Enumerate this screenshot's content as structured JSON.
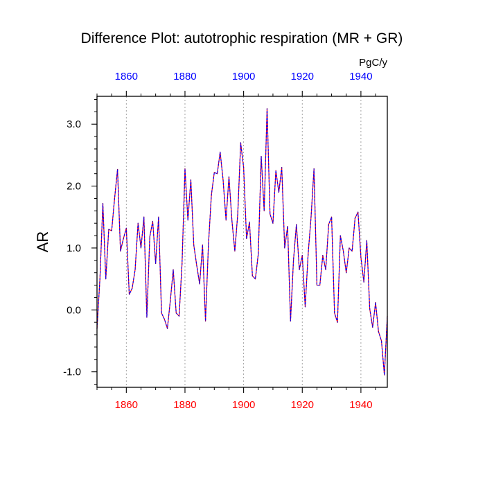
{
  "chart_data": {
    "type": "line",
    "title": "Difference Plot: autotrophic respiration (MR + GR)",
    "ylabel": "AR",
    "units": "PgC/y",
    "xlim": [
      1850,
      1949
    ],
    "ylim": [
      -1.25,
      3.45
    ],
    "x_ticks": [
      "1860",
      "1880",
      "1900",
      "1920",
      "1940"
    ],
    "y_ticks": [
      "3.0",
      "2.0",
      "1.0",
      "0.0",
      "-1.0"
    ],
    "grid": "vertical dotted",
    "colors": {
      "bottom_axis_labels": "#ff0000",
      "top_axis_labels": "#0000ff",
      "series_dash_a": "#0000ff",
      "series_dash_b": "#ff0000"
    },
    "series": [
      {
        "name": "AR",
        "x": [
          1850,
          1851,
          1852,
          1853,
          1854,
          1855,
          1856,
          1857,
          1858,
          1859,
          1860,
          1861,
          1862,
          1863,
          1864,
          1865,
          1866,
          1867,
          1868,
          1869,
          1870,
          1871,
          1872,
          1873,
          1874,
          1875,
          1876,
          1877,
          1878,
          1879,
          1880,
          1881,
          1882,
          1883,
          1884,
          1885,
          1886,
          1887,
          1888,
          1889,
          1890,
          1891,
          1892,
          1893,
          1894,
          1895,
          1896,
          1897,
          1898,
          1899,
          1900,
          1901,
          1902,
          1903,
          1904,
          1905,
          1906,
          1907,
          1908,
          1909,
          1910,
          1911,
          1912,
          1913,
          1914,
          1915,
          1916,
          1917,
          1918,
          1919,
          1920,
          1921,
          1922,
          1923,
          1924,
          1925,
          1926,
          1927,
          1928,
          1929,
          1930,
          1931,
          1932,
          1933,
          1934,
          1935,
          1936,
          1937,
          1938,
          1939,
          1940,
          1941,
          1942,
          1943,
          1944,
          1945,
          1946,
          1947,
          1948,
          1949
        ],
        "y": [
          -0.3,
          0.5,
          1.72,
          0.5,
          1.3,
          1.28,
          1.8,
          2.27,
          0.95,
          1.15,
          1.32,
          0.25,
          0.35,
          0.65,
          1.4,
          1.0,
          1.5,
          -0.12,
          1.18,
          1.43,
          0.75,
          1.5,
          -0.05,
          -0.15,
          -0.3,
          0.15,
          0.65,
          -0.05,
          -0.1,
          0.75,
          2.28,
          1.45,
          2.1,
          1.05,
          0.72,
          0.42,
          1.05,
          -0.18,
          1.05,
          1.85,
          2.22,
          2.2,
          2.55,
          2.1,
          1.45,
          2.15,
          1.45,
          0.95,
          1.55,
          2.7,
          2.3,
          1.15,
          1.42,
          0.55,
          0.5,
          0.9,
          2.48,
          1.6,
          3.25,
          1.55,
          1.4,
          2.25,
          1.9,
          2.3,
          1.0,
          1.35,
          -0.18,
          0.8,
          1.38,
          0.65,
          0.88,
          0.05,
          0.9,
          1.5,
          2.28,
          0.4,
          0.4,
          0.88,
          0.65,
          1.38,
          1.5,
          -0.05,
          -0.2,
          1.2,
          0.95,
          0.6,
          1.0,
          0.95,
          1.48,
          1.58,
          0.85,
          0.45,
          1.12,
          0.02,
          -0.28,
          0.12,
          -0.35,
          -0.5,
          -1.05,
          -0.1
        ]
      }
    ]
  }
}
